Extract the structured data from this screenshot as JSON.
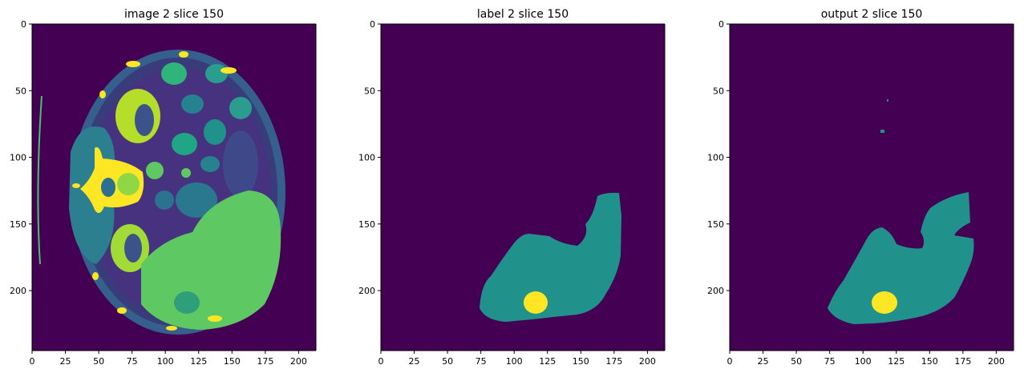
{
  "figure": {
    "panels": [
      {
        "id": "image",
        "title": "image 2 slice 150"
      },
      {
        "id": "label",
        "title": "label 2 slice 150"
      },
      {
        "id": "output",
        "title": "output 2 slice 150"
      }
    ],
    "x_ticks": [
      0,
      25,
      50,
      75,
      100,
      125,
      150,
      175,
      200
    ],
    "y_ticks": [
      0,
      50,
      100,
      150,
      200
    ],
    "x_range": [
      0,
      213
    ],
    "y_range": [
      0,
      245
    ],
    "colors": {
      "background": "#440154",
      "class_1": "#21918c",
      "class_2": "#fde725",
      "tissue_mid": "#3b6f8e",
      "tissue_bright": "#56c667",
      "tissue_dim": "#2f4f7f"
    }
  }
}
